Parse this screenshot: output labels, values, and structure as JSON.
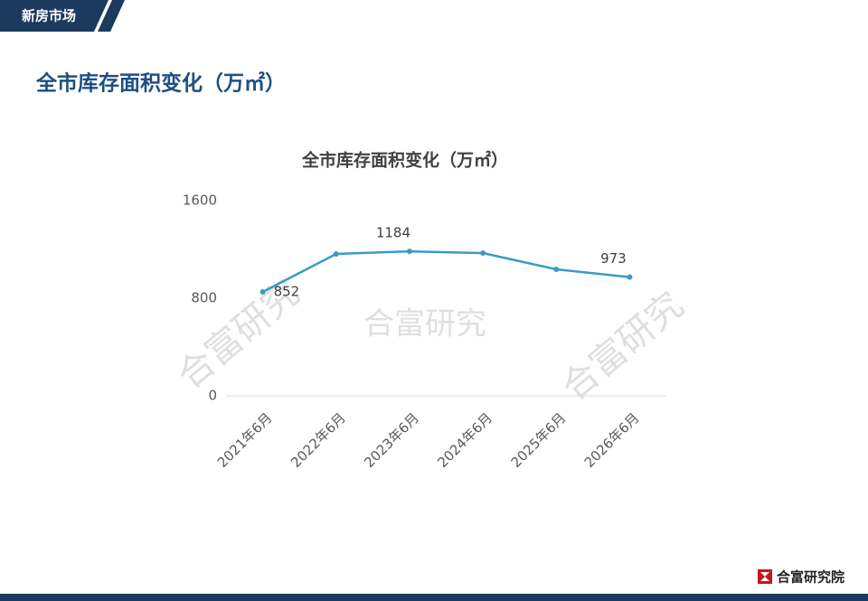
{
  "header": {
    "section": "新房市场",
    "title": "全市库存面积变化（万㎡）"
  },
  "watermark": "合富研究",
  "footer": {
    "brand": "合富研究院"
  },
  "chart_data": {
    "type": "line",
    "title": "全市库存面积变化（万㎡）",
    "categories": [
      "2021年6月",
      "2022年6月",
      "2023年6月",
      "2024年6月",
      "2025年6月",
      "2026年6月"
    ],
    "series": [
      {
        "name": "全市库存面积",
        "color": "#3a9bc5",
        "values": [
          852,
          1163,
          1184,
          1170,
          1037,
          973
        ],
        "value_labels": [
          "852",
          null,
          "1184",
          null,
          null,
          "973"
        ]
      }
    ],
    "ylim": [
      0,
      1600
    ],
    "yticks": [
      0,
      800,
      1600
    ],
    "grid": false
  }
}
